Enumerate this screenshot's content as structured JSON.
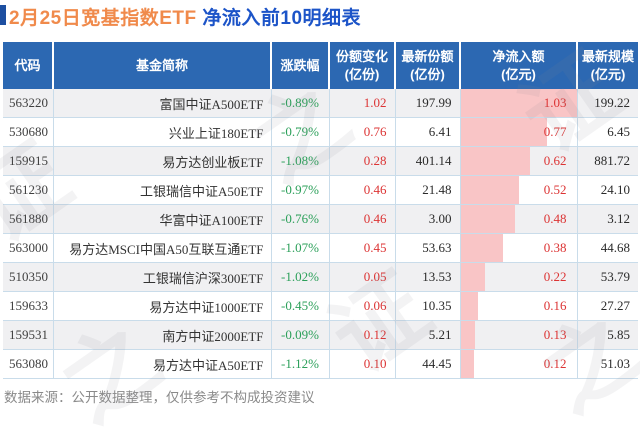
{
  "title": {
    "highlight": "2月25日宽基指数ETF",
    "rest": " 净流入前10明细表"
  },
  "colors": {
    "title_highlight": "#f08a4b",
    "title_rest": "#1c54c8",
    "header_bg": "#2c68b2",
    "row_alt": "#f0f0f2",
    "bar_pink": "#f9c5c6",
    "pos_red": "#dc3434",
    "neg_green": "#2ca05a",
    "border": "#c9dcEA"
  },
  "watermark": {
    "text": "证券之星"
  },
  "footer": {
    "text": "数据来源：公开数据整理，仅供参考不构成投资建议"
  },
  "chart_data": {
    "type": "table",
    "title": "2月25日宽基指数ETF 净流入前10明细表",
    "columns": [
      "代码",
      "基金简称",
      "涨跌幅",
      "份额变化(亿份)",
      "最新份额(亿份)",
      "净流入额(亿元)",
      "最新规模(亿元)"
    ],
    "header_line1": [
      "代码",
      "基金简称",
      "涨跌幅",
      "份额变化",
      "最新份额",
      "净流入额",
      "最新规模"
    ],
    "header_line2": [
      "",
      "",
      "",
      "(亿份)",
      "(亿份)",
      "(亿元)",
      "(亿元)"
    ],
    "rows": [
      [
        "563220",
        "富国中证A500ETF",
        "-0.89%",
        "1.02",
        "197.99",
        "1.03",
        "199.22"
      ],
      [
        "530680",
        "兴业上证180ETF",
        "-0.79%",
        "0.76",
        "6.41",
        "0.77",
        "6.45"
      ],
      [
        "159915",
        "易方达创业板ETF",
        "-1.08%",
        "0.28",
        "401.14",
        "0.62",
        "881.72"
      ],
      [
        "561230",
        "工银瑞信中证A50ETF",
        "-0.97%",
        "0.46",
        "21.48",
        "0.52",
        "24.10"
      ],
      [
        "561880",
        "华富中证A100ETF",
        "-0.76%",
        "0.46",
        "3.00",
        "0.48",
        "3.12"
      ],
      [
        "563000",
        "易方达MSCI中国A50互联互通ETF",
        "-1.07%",
        "0.45",
        "53.63",
        "0.38",
        "44.68"
      ],
      [
        "510350",
        "工银瑞信沪深300ETF",
        "-1.02%",
        "0.05",
        "13.53",
        "0.22",
        "53.79"
      ],
      [
        "159633",
        "易方达中证1000ETF",
        "-0.45%",
        "0.06",
        "10.35",
        "0.16",
        "27.27"
      ],
      [
        "159531",
        "南方中证2000ETF",
        "-0.09%",
        "0.12",
        "5.21",
        "0.13",
        "5.85"
      ],
      [
        "563080",
        "易方达中证A50ETF",
        "-1.12%",
        "0.10",
        "44.45",
        "0.12",
        "51.03"
      ]
    ],
    "bar_column": "净流入额(亿元)",
    "bar_max": 1.03,
    "notes": "净流入额列带左对齐粉色比例条，宽度=净流入额/1.03；涨跌幅为绿色(下跌)，份额变化与净流入额为红色"
  }
}
